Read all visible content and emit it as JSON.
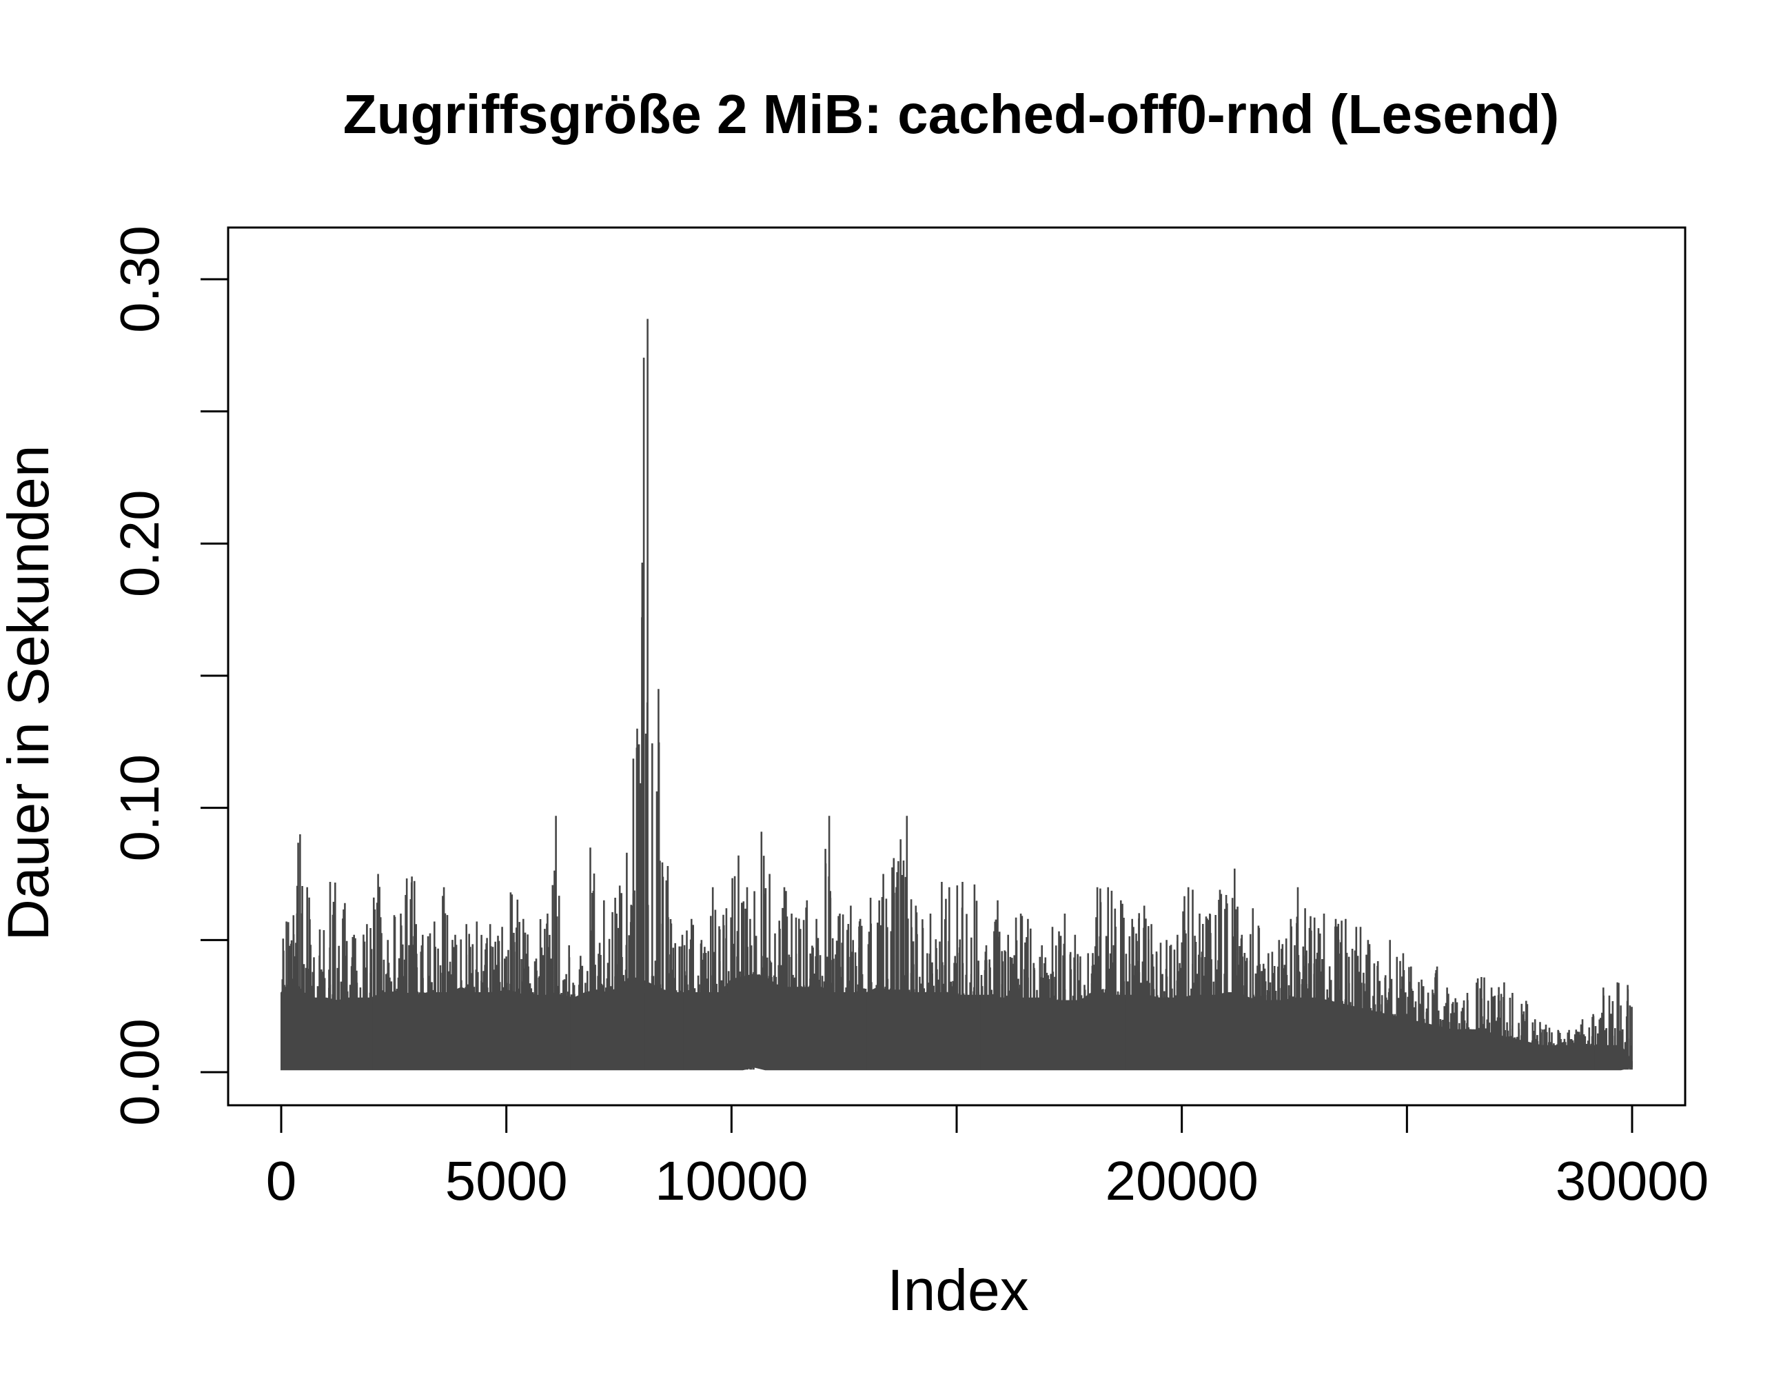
{
  "chart_data": {
    "type": "line",
    "title": "Zugriffsgröße 2 MiB: cached-off0-rnd (Lesend)",
    "xlabel": "Index",
    "ylabel": "Dauer in Sekunden",
    "xlim": [
      0,
      30000
    ],
    "ylim": [
      0,
      0.3
    ],
    "x_ticks": [
      0,
      5000,
      10000,
      15000,
      20000,
      25000,
      30000
    ],
    "x_tick_labels": [
      "0",
      "5000",
      "10000",
      "",
      "20000",
      "",
      "30000"
    ],
    "y_ticks": [
      0.0,
      0.05,
      0.1,
      0.15,
      0.2,
      0.25,
      0.3
    ],
    "y_tick_labels": [
      "0.00",
      "",
      "0.10",
      "",
      "0.20",
      "",
      "0.30"
    ],
    "grid": false,
    "line_color": "#464646",
    "series": [
      {
        "sampling": "per-bin envelope of an index-ordered series (min and max per bin of the index)",
        "x": [
          0,
          250,
          500,
          750,
          1000,
          1250,
          1500,
          1750,
          2000,
          2250,
          2500,
          2750,
          3000,
          3250,
          3500,
          3750,
          4000,
          4250,
          4500,
          4750,
          5000,
          5250,
          5500,
          5750,
          6000,
          6250,
          6500,
          6750,
          7000,
          7250,
          7500,
          7750,
          8000,
          8250,
          8500,
          8750,
          9000,
          9250,
          9500,
          9750,
          10000,
          10250,
          10500,
          10750,
          11000,
          11250,
          11500,
          11750,
          12000,
          12250,
          12500,
          12750,
          13000,
          13250,
          13500,
          13750,
          14000,
          14250,
          14500,
          14750,
          15000,
          15250,
          15500,
          15750,
          16000,
          16250,
          16500,
          16750,
          17000,
          17250,
          17500,
          17750,
          18000,
          18250,
          18500,
          18750,
          19000,
          19250,
          19500,
          19750,
          20000,
          20250,
          20500,
          20750,
          21000,
          21250,
          21500,
          21750,
          22000,
          22250,
          22500,
          22750,
          23000,
          23250,
          23500,
          23750,
          24000,
          24250,
          24500,
          24750,
          25000,
          25250,
          25500,
          25750,
          26000,
          26250,
          26500,
          26750,
          27000,
          27250,
          27500,
          27750,
          28000,
          28250,
          28500,
          28750,
          29000,
          29250,
          29500,
          29750,
          30000
        ],
        "min": [
          0.001,
          0.001,
          0.001,
          0.001,
          0.001,
          0.001,
          0.001,
          0.001,
          0.001,
          0.001,
          0.001,
          0.001,
          0.001,
          0.001,
          0.001,
          0.001,
          0.001,
          0.001,
          0.001,
          0.001,
          0.001,
          0.001,
          0.001,
          0.001,
          0.001,
          0.001,
          0.001,
          0.001,
          0.001,
          0.001,
          0.001,
          0.001,
          0.001,
          0.001,
          0.001,
          0.001,
          0.001,
          0.001,
          0.001,
          0.001,
          0.001,
          0.001,
          0.002,
          0.001,
          0.001,
          0.001,
          0.001,
          0.001,
          0.001,
          0.001,
          0.001,
          0.001,
          0.001,
          0.001,
          0.001,
          0.001,
          0.001,
          0.001,
          0.001,
          0.001,
          0.001,
          0.001,
          0.001,
          0.001,
          0.001,
          0.001,
          0.001,
          0.001,
          0.001,
          0.001,
          0.001,
          0.001,
          0.001,
          0.001,
          0.001,
          0.001,
          0.001,
          0.001,
          0.001,
          0.001,
          0.001,
          0.001,
          0.001,
          0.001,
          0.001,
          0.001,
          0.001,
          0.001,
          0.001,
          0.001,
          0.001,
          0.001,
          0.001,
          0.001,
          0.001,
          0.001,
          0.001,
          0.001,
          0.001,
          0.001,
          0.001,
          0.001,
          0.001,
          0.001,
          0.001,
          0.001,
          0.001,
          0.001,
          0.001,
          0.001,
          0.001,
          0.001,
          0.001,
          0.001,
          0.001,
          0.001,
          0.001,
          0.001,
          0.001,
          0.001,
          0.002
        ],
        "max": [
          0.057,
          0.09,
          0.07,
          0.054,
          0.072,
          0.064,
          0.052,
          0.056,
          0.075,
          0.05,
          0.06,
          0.074,
          0.052,
          0.057,
          0.07,
          0.052,
          0.056,
          0.057,
          0.056,
          0.055,
          0.068,
          0.058,
          0.043,
          0.06,
          0.097,
          0.048,
          0.044,
          0.085,
          0.065,
          0.066,
          0.083,
          0.13,
          0.285,
          0.145,
          0.078,
          0.052,
          0.058,
          0.05,
          0.07,
          0.062,
          0.082,
          0.07,
          0.091,
          0.075,
          0.07,
          0.06,
          0.065,
          0.058,
          0.097,
          0.06,
          0.063,
          0.058,
          0.066,
          0.075,
          0.081,
          0.097,
          0.063,
          0.06,
          0.072,
          0.07,
          0.072,
          0.071,
          0.048,
          0.065,
          0.052,
          0.06,
          0.058,
          0.048,
          0.055,
          0.06,
          0.052,
          0.045,
          0.07,
          0.07,
          0.065,
          0.058,
          0.063,
          0.056,
          0.05,
          0.052,
          0.07,
          0.06,
          0.06,
          0.069,
          0.077,
          0.052,
          0.062,
          0.045,
          0.05,
          0.058,
          0.07,
          0.059,
          0.06,
          0.058,
          0.058,
          0.055,
          0.05,
          0.042,
          0.05,
          0.045,
          0.04,
          0.035,
          0.04,
          0.032,
          0.028,
          0.03,
          0.036,
          0.032,
          0.034,
          0.03,
          0.027,
          0.02,
          0.018,
          0.016,
          0.016,
          0.02,
          0.022,
          0.032,
          0.034,
          0.033,
          0.004
        ],
        "typical_upper": [
          0.03,
          0.035,
          0.03,
          0.028,
          0.028,
          0.027,
          0.028,
          0.028,
          0.028,
          0.03,
          0.03,
          0.03,
          0.029,
          0.03,
          0.03,
          0.03,
          0.032,
          0.03,
          0.03,
          0.03,
          0.031,
          0.03,
          0.028,
          0.028,
          0.03,
          0.029,
          0.028,
          0.03,
          0.031,
          0.03,
          0.032,
          0.036,
          0.035,
          0.033,
          0.031,
          0.03,
          0.03,
          0.03,
          0.03,
          0.03,
          0.035,
          0.036,
          0.037,
          0.036,
          0.033,
          0.032,
          0.032,
          0.032,
          0.032,
          0.03,
          0.03,
          0.03,
          0.03,
          0.032,
          0.031,
          0.031,
          0.03,
          0.03,
          0.03,
          0.03,
          0.029,
          0.029,
          0.029,
          0.029,
          0.028,
          0.028,
          0.028,
          0.028,
          0.028,
          0.027,
          0.027,
          0.027,
          0.03,
          0.03,
          0.029,
          0.029,
          0.029,
          0.029,
          0.028,
          0.028,
          0.028,
          0.029,
          0.029,
          0.029,
          0.03,
          0.03,
          0.028,
          0.027,
          0.027,
          0.027,
          0.028,
          0.028,
          0.028,
          0.027,
          0.026,
          0.025,
          0.024,
          0.023,
          0.022,
          0.021,
          0.02,
          0.019,
          0.018,
          0.017,
          0.016,
          0.016,
          0.016,
          0.015,
          0.014,
          0.013,
          0.012,
          0.011,
          0.01,
          0.01,
          0.01,
          0.01,
          0.01,
          0.01,
          0.01,
          0.01,
          0.004
        ]
      }
    ]
  }
}
